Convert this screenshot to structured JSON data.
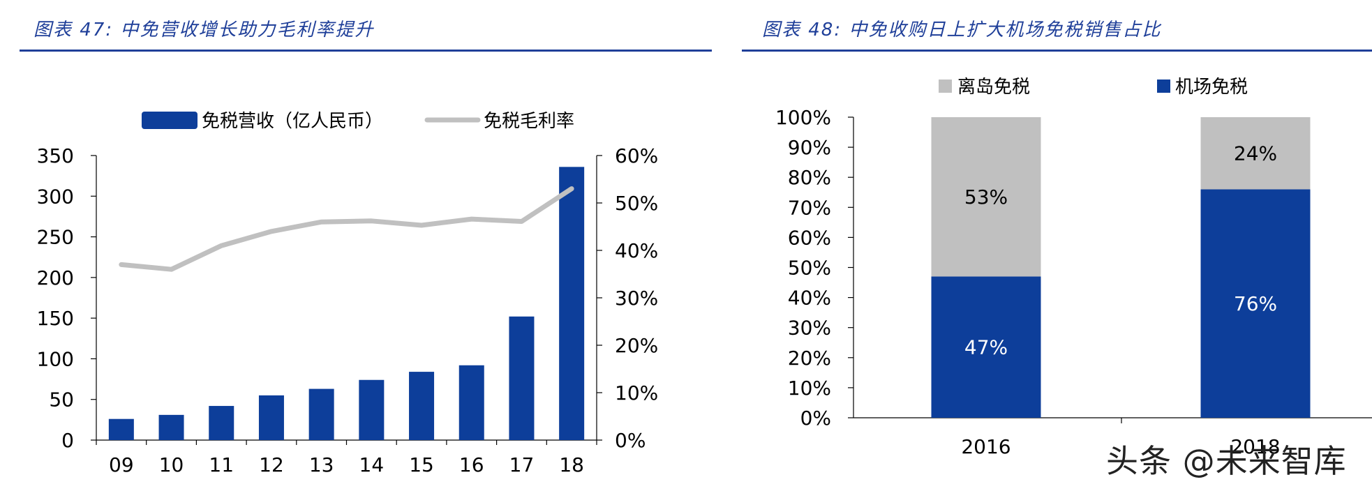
{
  "left_panel": {
    "title": "图表 47: 中免营收增长助力毛利率提升"
  },
  "right_panel": {
    "title": "图表 48: 中免收购日上扩大机场免税销售占比"
  },
  "watermark": "头条 @未来智库",
  "colors": {
    "navy": "#0d3e9a",
    "gray": "#c0c0c0",
    "title_blue": "#1f3f99"
  },
  "chart_data": [
    {
      "type": "bar",
      "title": "",
      "categories": [
        "09",
        "10",
        "11",
        "12",
        "13",
        "14",
        "15",
        "16",
        "17",
        "18"
      ],
      "series": [
        {
          "name": "免税营收（亿人民币）",
          "kind": "bar",
          "axis": "left",
          "values": [
            26,
            31,
            42,
            55,
            63,
            74,
            84,
            92,
            152,
            336
          ]
        },
        {
          "name": "免税毛利率",
          "kind": "line",
          "axis": "right",
          "values": [
            37,
            36,
            41,
            44,
            46,
            46.2,
            45.3,
            46.6,
            46.1,
            53
          ]
        }
      ],
      "y_left": {
        "ylim": [
          0,
          350
        ],
        "ticks": [
          "0",
          "50",
          "100",
          "150",
          "200",
          "250",
          "300",
          "350"
        ]
      },
      "y_right": {
        "ylim": [
          0,
          60
        ],
        "ticks": [
          "0%",
          "10%",
          "20%",
          "30%",
          "40%",
          "50%",
          "60%"
        ]
      },
      "legend_position": "top",
      "grid": false
    },
    {
      "type": "bar",
      "stacked": true,
      "title": "",
      "categories": [
        "2016",
        "2018"
      ],
      "series": [
        {
          "name": "机场免税",
          "values": [
            47,
            76
          ],
          "labels": [
            "47%",
            "76%"
          ]
        },
        {
          "name": "离岛免税",
          "values": [
            53,
            24
          ],
          "labels": [
            "53%",
            "24%"
          ]
        }
      ],
      "ylim": [
        0,
        100
      ],
      "y_ticks": [
        "0%",
        "10%",
        "20%",
        "30%",
        "40%",
        "50%",
        "60%",
        "70%",
        "80%",
        "90%",
        "100%"
      ],
      "legend_position": "top",
      "grid": false
    }
  ]
}
